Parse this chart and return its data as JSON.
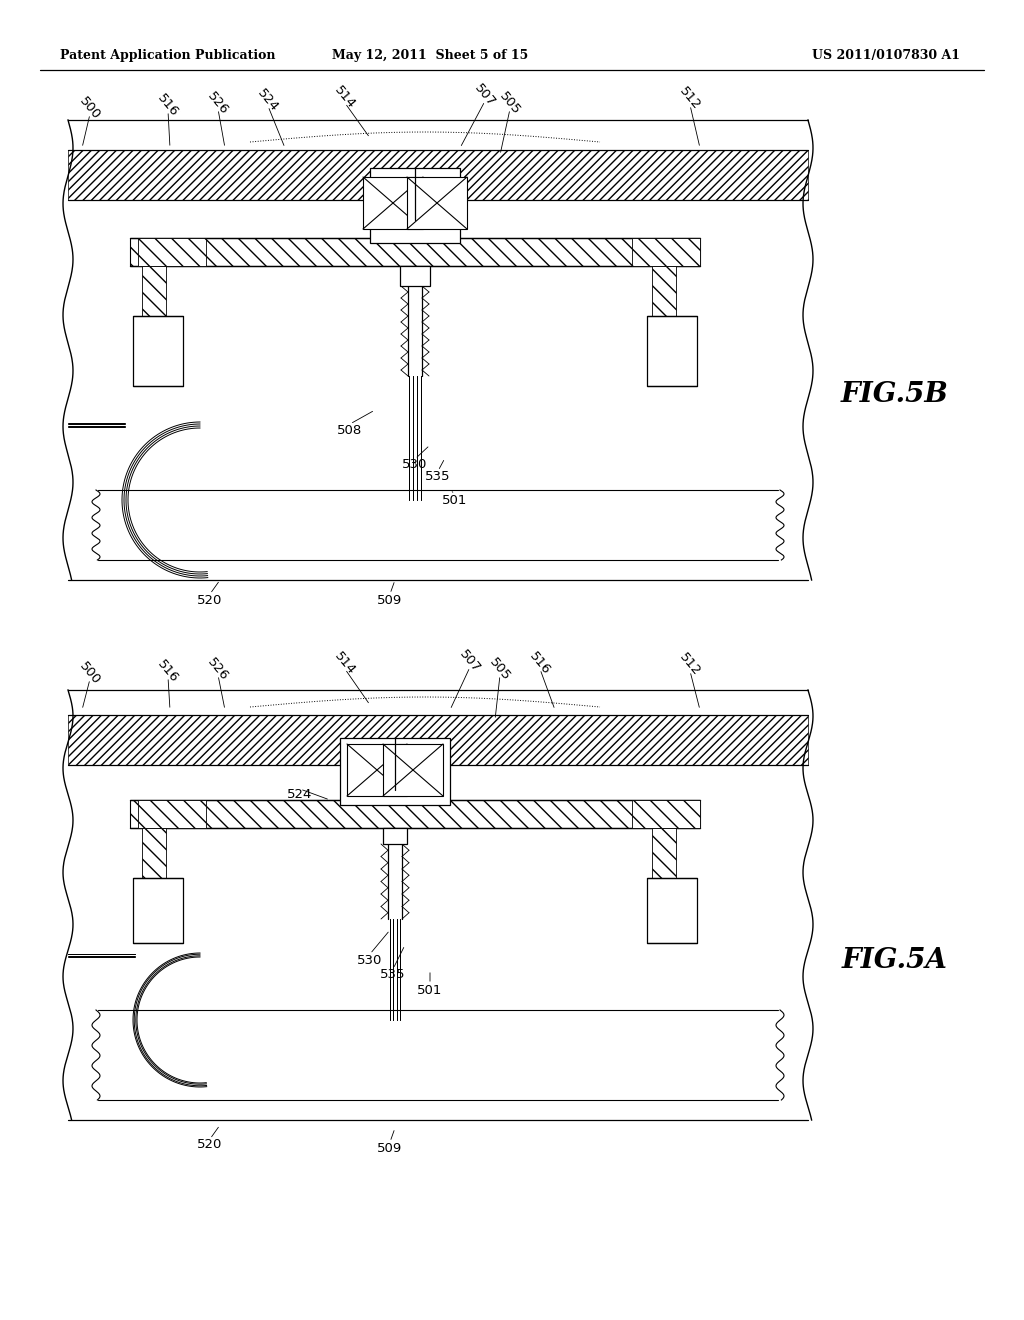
{
  "header_left": "Patent Application Publication",
  "header_mid": "May 12, 2011  Sheet 5 of 15",
  "header_right": "US 2011/0107830 A1",
  "fig_top_label": "FIG.5B",
  "fig_bot_label": "FIG.5A",
  "bg_color": "#ffffff"
}
